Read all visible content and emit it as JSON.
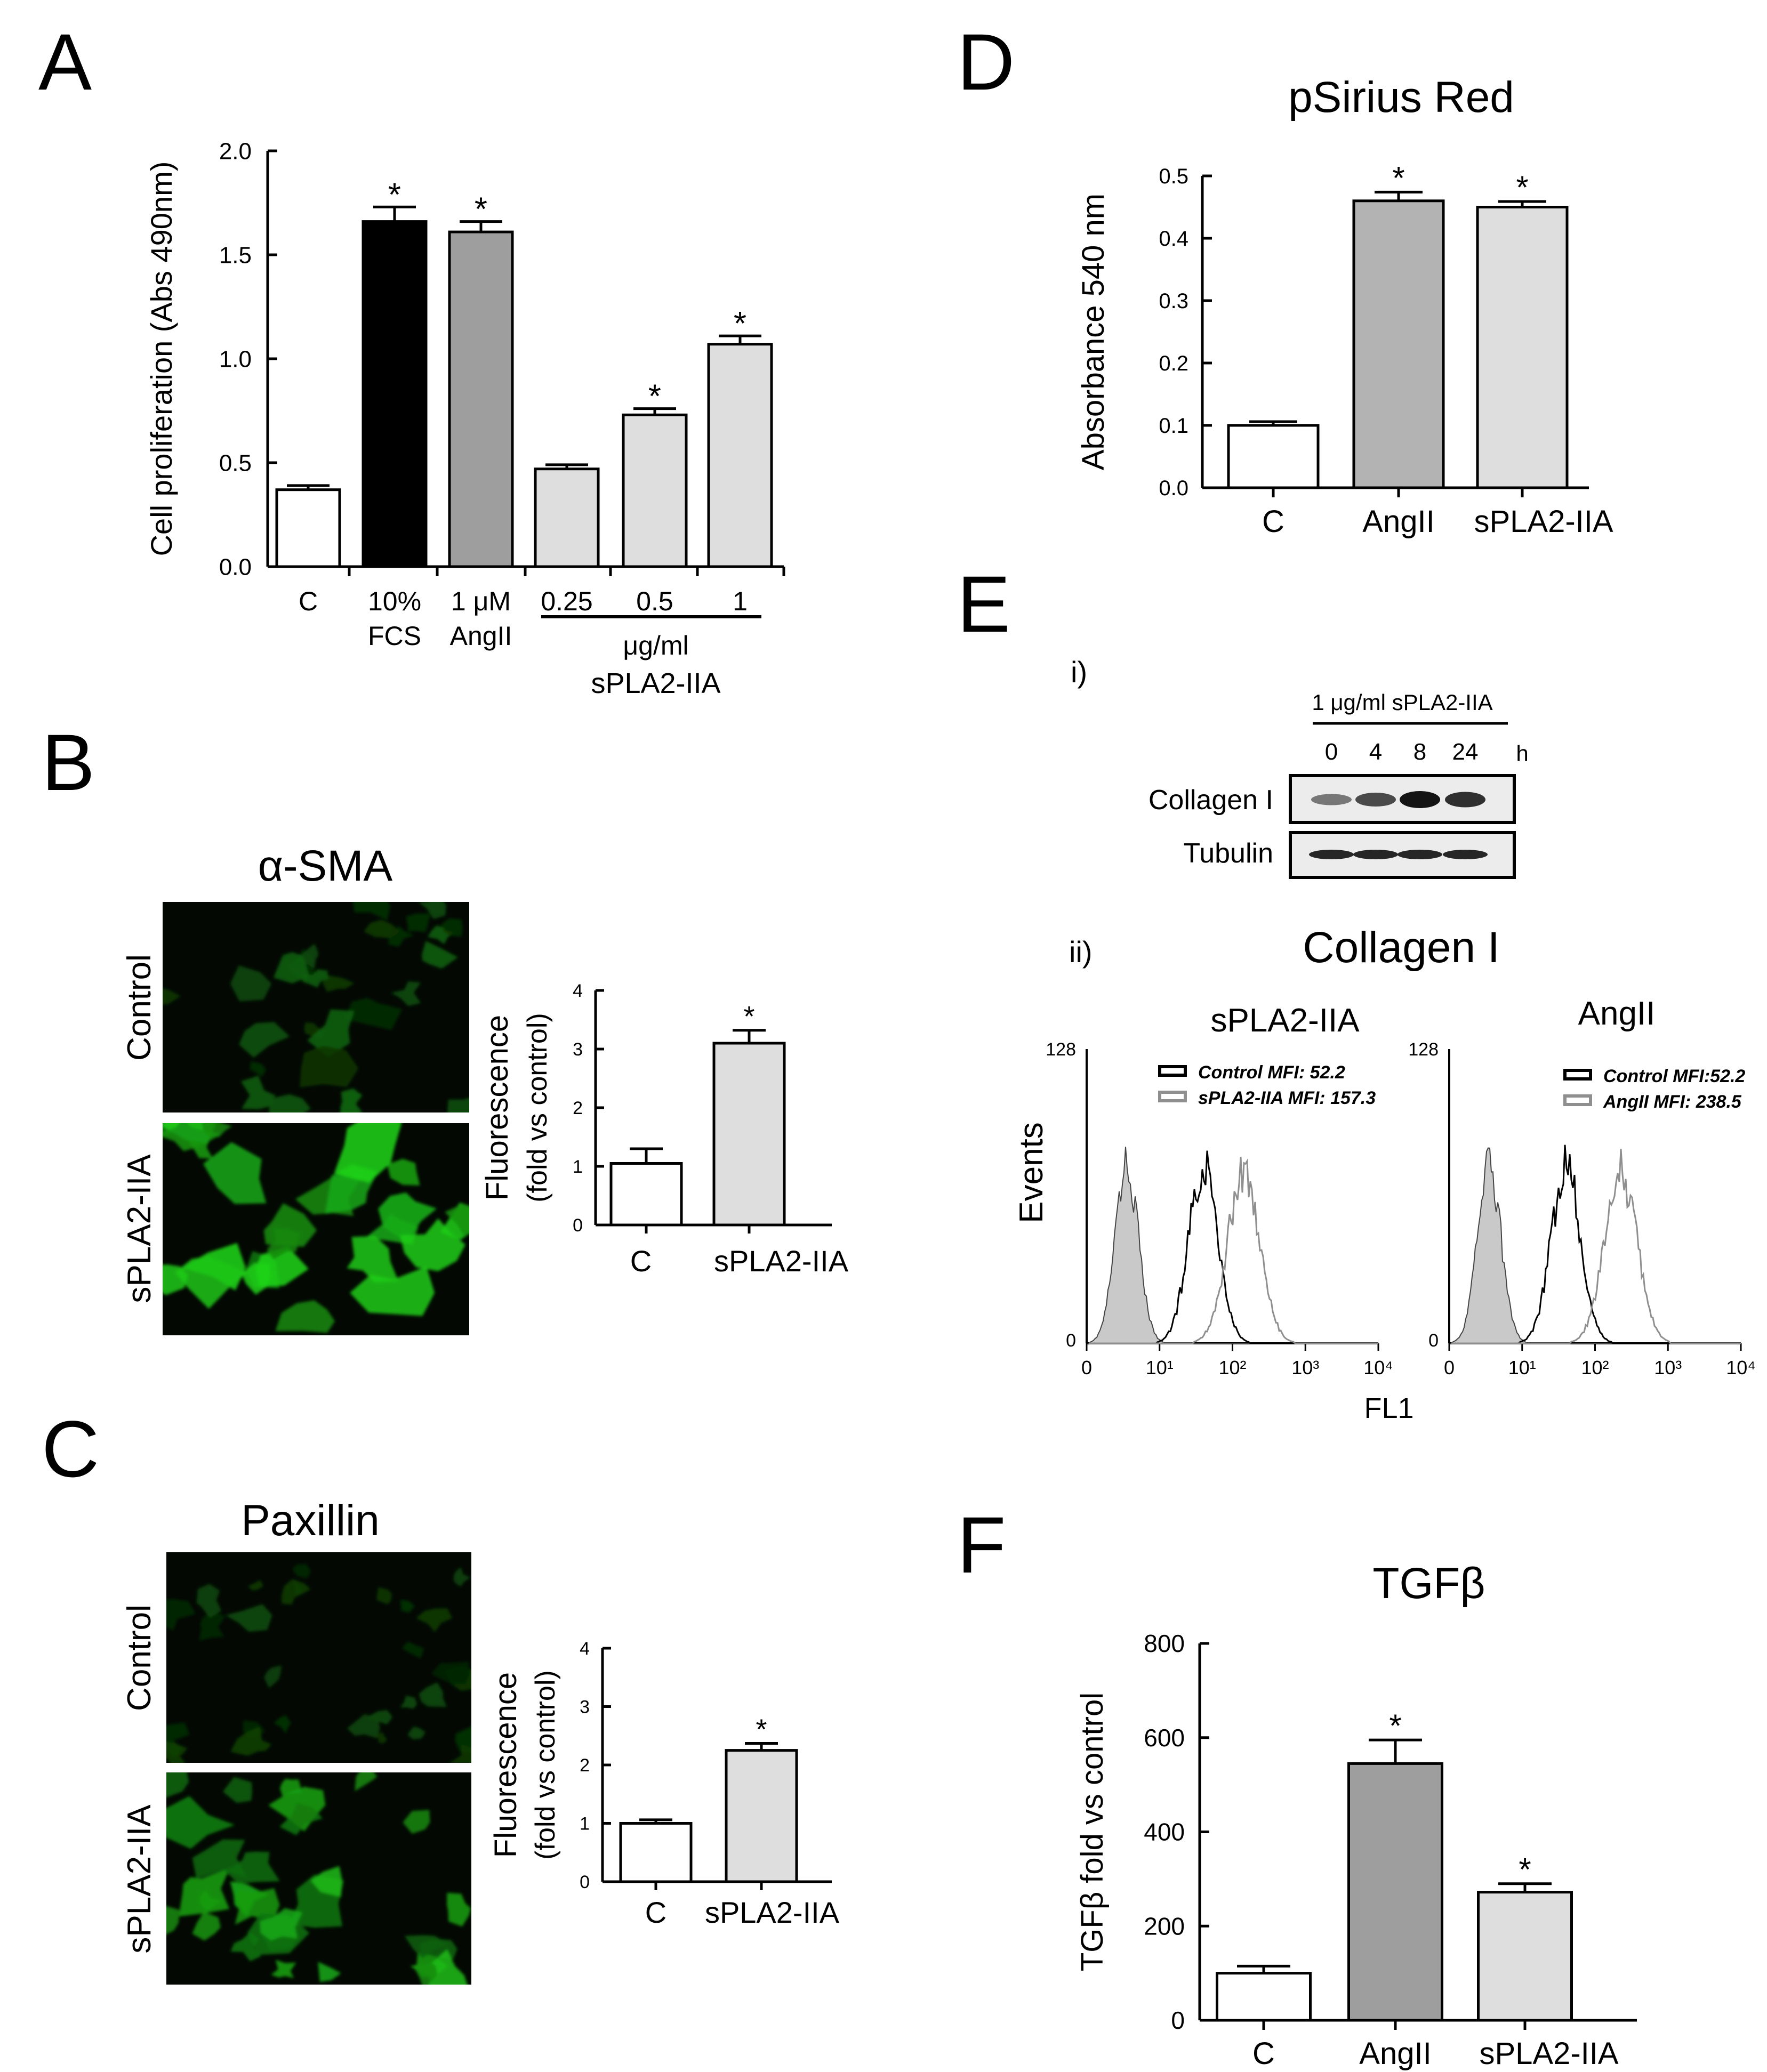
{
  "chart_data": [
    {
      "panel": "A",
      "type": "bar",
      "title": "",
      "ylabel": "Cell proliferation (Abs 490nm)",
      "ylim": [
        0,
        2.0
      ],
      "yticks": [
        "0.0",
        "0.5",
        "1.0",
        "1.5",
        "2.0"
      ],
      "categories": [
        {
          "line1": "C",
          "line2": ""
        },
        {
          "line1": "10%",
          "line2": "FCS"
        },
        {
          "line1": "1 μM",
          "line2": "AngII"
        },
        {
          "line1": "0.25",
          "line2": ""
        },
        {
          "line1": "0.5",
          "line2": ""
        },
        {
          "line1": "1",
          "line2": ""
        }
      ],
      "values": [
        0.37,
        1.66,
        1.61,
        0.47,
        0.73,
        1.07
      ],
      "errors": [
        0.02,
        0.07,
        0.05,
        0.02,
        0.03,
        0.04
      ],
      "significant": [
        false,
        true,
        true,
        false,
        true,
        true
      ],
      "colors": [
        "#ffffff",
        "#000000",
        "#9e9e9e",
        "#dedede",
        "#dedede",
        "#dedede"
      ],
      "group_label": {
        "unit": "μg/ml",
        "name": "sPLA2-IIA"
      }
    },
    {
      "panel": "B",
      "type": "bar",
      "title": "",
      "ylabel": "Fluorescence",
      "ylabel2": "(fold vs control)",
      "ylim": [
        0,
        4
      ],
      "yticks": [
        "0",
        "1",
        "2",
        "3",
        "4"
      ],
      "categories": [
        "C",
        "sPLA2-IIA"
      ],
      "values": [
        1.05,
        3.1
      ],
      "errors": [
        0.25,
        0.22
      ],
      "significant": [
        false,
        true
      ],
      "colors": [
        "#ffffff",
        "#dedede"
      ]
    },
    {
      "panel": "C",
      "type": "bar",
      "title": "",
      "ylabel": "Fluorescence",
      "ylabel2": "(fold vs control)",
      "ylim": [
        0,
        4
      ],
      "yticks": [
        "0",
        "1",
        "2",
        "3",
        "4"
      ],
      "categories": [
        "C",
        "sPLA2-IIA"
      ],
      "values": [
        1.0,
        2.25
      ],
      "errors": [
        0.06,
        0.12
      ],
      "significant": [
        false,
        true
      ],
      "colors": [
        "#ffffff",
        "#dedede"
      ]
    },
    {
      "panel": "D",
      "type": "bar",
      "title": "pSirius Red",
      "ylabel": "Absorbance 540 nm",
      "ylim": [
        0,
        0.5
      ],
      "yticks": [
        "0.0",
        "0.1",
        "0.2",
        "0.3",
        "0.4",
        "0.5"
      ],
      "categories": [
        "C",
        "AngII",
        "sPLA2-IIA"
      ],
      "values": [
        0.1,
        0.46,
        0.45
      ],
      "errors": [
        0.006,
        0.014,
        0.009
      ],
      "significant": [
        false,
        true,
        true
      ],
      "colors": [
        "#ffffff",
        "#b3b3b3",
        "#dedede"
      ]
    },
    {
      "panel": "E-ii-left",
      "type": "line",
      "title": "sPLA2-IIA",
      "xscale": "log",
      "xticks": [
        "0",
        "10¹",
        "10²",
        "10³",
        "10⁴"
      ],
      "yticks": [
        "0",
        "128"
      ],
      "ylim": [
        0,
        128
      ],
      "series": [
        {
          "name": "Control MFI: 52.2",
          "color": "#000000"
        },
        {
          "name": "sPLA2-IIA MFI: 157.3",
          "color": "#8f8f8f"
        }
      ]
    },
    {
      "panel": "E-ii-right",
      "type": "line",
      "title": "AngII",
      "xscale": "log",
      "xticks": [
        "0",
        "10¹",
        "10²",
        "10³",
        "10⁴"
      ],
      "yticks": [
        "0",
        "128"
      ],
      "ylim": [
        0,
        128
      ],
      "series": [
        {
          "name": "Control MFI:52.2",
          "color": "#000000"
        },
        {
          "name": "AngII MFI: 238.5",
          "color": "#8f8f8f"
        }
      ]
    },
    {
      "panel": "F",
      "type": "bar",
      "title": "TGFβ",
      "ylabel": "TGFβ  fold vs control",
      "ylim": [
        0,
        800
      ],
      "yticks": [
        "0",
        "200",
        "400",
        "600",
        "800"
      ],
      "categories": [
        "C",
        "AngII",
        "sPLA2-IIA"
      ],
      "values": [
        100,
        545,
        272
      ],
      "errors": [
        15,
        50,
        18
      ],
      "significant": [
        false,
        true,
        true
      ],
      "colors": [
        "#ffffff",
        "#9e9e9e",
        "#dedede"
      ]
    }
  ],
  "panel_letters": {
    "A": "A",
    "B": "B",
    "C": "C",
    "D": "D",
    "E": "E",
    "F": "F"
  },
  "panelB": {
    "title": "α-SMA",
    "row1": "Control",
    "row2": "sPLA2-IIA"
  },
  "panelC": {
    "title": "Paxillin",
    "row1": "Control",
    "row2": "sPLA2-IIA"
  },
  "panelE": {
    "sub1": "i)",
    "sub2": "ii)",
    "blot_header": "1 μg/ml sPLA2-IIA",
    "timepoints": [
      "0",
      "4",
      "8",
      "24"
    ],
    "time_unit": "h",
    "band_row1": "Collagen I",
    "band_row2": "Tubulin",
    "row1_intensity": [
      0.45,
      0.7,
      1.0,
      0.85
    ],
    "row2_intensity": [
      0.9,
      0.9,
      0.9,
      0.9
    ],
    "flow_title": "Collagen I",
    "flow_ylabel": "Events",
    "flow_xlabel": "FL1"
  },
  "star": "*"
}
